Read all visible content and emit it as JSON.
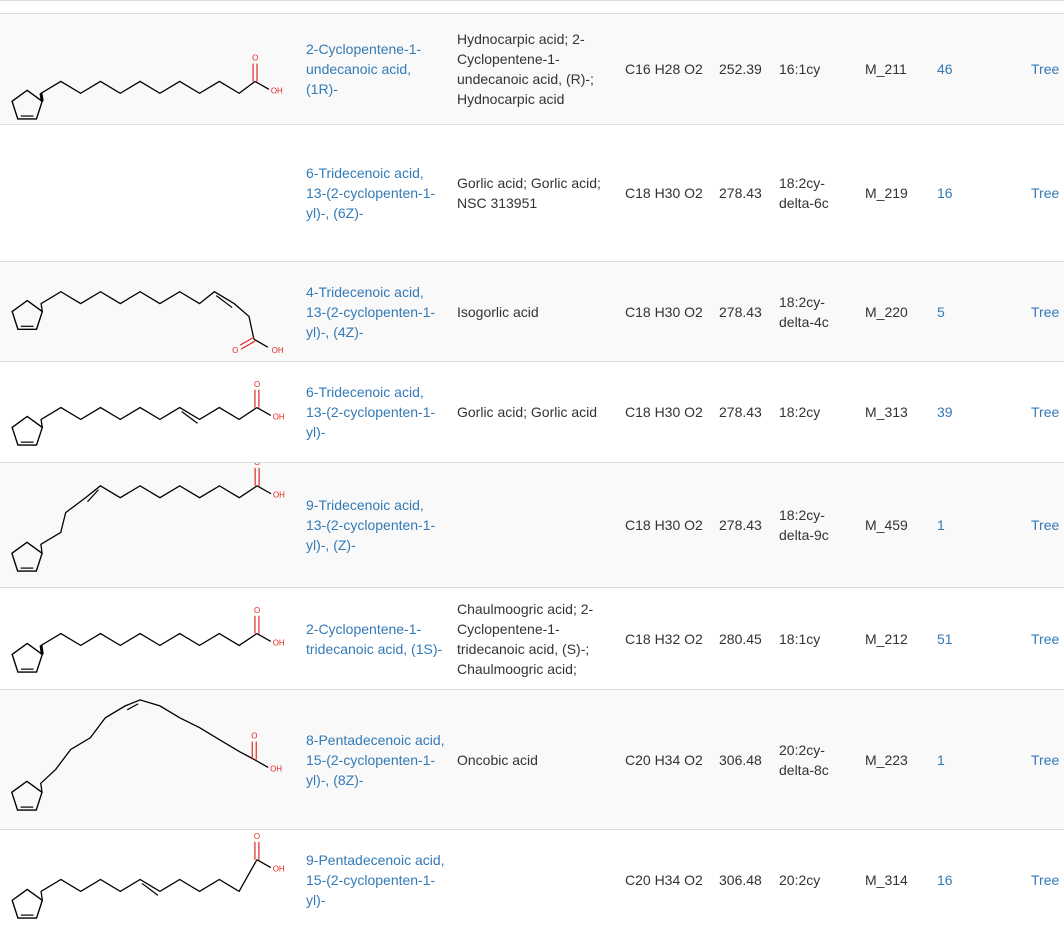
{
  "table": {
    "rows": [
      {
        "name": "2-Cyclopentene-1-undecanoic acid, (1R)-",
        "synonyms": "Hydnocarpic acid; 2-Cyclopentene-1-undecanoic acid, (R)-; Hydnocarpic acid",
        "formula": "C16 H28 O2",
        "mass": "252.39",
        "abbrev": "16:1cy",
        "id": "M_211",
        "count": "46",
        "tree": "Tree"
      },
      {
        "name": "6-Tridecenoic acid, 13-(2-cyclopenten-1-yl)-, (6Z)-",
        "synonyms": "Gorlic acid; Gorlic acid; NSC 313951",
        "formula": "C18 H30 O2",
        "mass": "278.43",
        "abbrev": "18:2cy-delta-6c",
        "id": "M_219",
        "count": "16",
        "tree": "Tree"
      },
      {
        "name": "4-Tridecenoic acid, 13-(2-cyclopenten-1-yl)-, (4Z)-",
        "synonyms": "Isogorlic acid",
        "formula": "C18 H30 O2",
        "mass": "278.43",
        "abbrev": "18:2cy-delta-4c",
        "id": "M_220",
        "count": "5",
        "tree": "Tree"
      },
      {
        "name": "6-Tridecenoic acid, 13-(2-cyclopenten-1-yl)-",
        "synonyms": "Gorlic acid; Gorlic acid",
        "formula": "C18 H30 O2",
        "mass": "278.43",
        "abbrev": "18:2cy",
        "id": "M_313",
        "count": "39",
        "tree": "Tree"
      },
      {
        "name": "9-Tridecenoic acid, 13-(2-cyclopenten-1-yl)-, (Z)-",
        "synonyms": "",
        "formula": "C18 H30 O2",
        "mass": "278.43",
        "abbrev": "18:2cy-delta-9c",
        "id": "M_459",
        "count": "1",
        "tree": "Tree"
      },
      {
        "name": "2-Cyclopentene-1-tridecanoic acid, (1S)-",
        "synonyms": "Chaulmoogric acid; 2-Cyclopentene-1-tridecanoic acid, (S)-; Chaulmoogric acid;",
        "formula": "C18 H32 O2",
        "mass": "280.45",
        "abbrev": "18:1cy",
        "id": "M_212",
        "count": "51",
        "tree": "Tree"
      },
      {
        "name": "8-Pentadecenoic acid, 15-(2-cyclopenten-1-yl)-, (8Z)-",
        "synonyms": "Oncobic acid",
        "formula": "C20 H34 O2",
        "mass": "306.48",
        "abbrev": "20:2cy-delta-8c",
        "id": "M_223",
        "count": "1",
        "tree": "Tree"
      },
      {
        "name": "9-Pentadecenoic acid, 15-(2-cyclopenten-1-yl)-",
        "synonyms": "",
        "formula": "C20 H34 O2",
        "mass": "306.48",
        "abbrev": "20:2cy",
        "id": "M_314",
        "count": "16",
        "tree": "Tree"
      }
    ],
    "structure": {
      "o_label": "O",
      "oh_label": "OH"
    }
  }
}
